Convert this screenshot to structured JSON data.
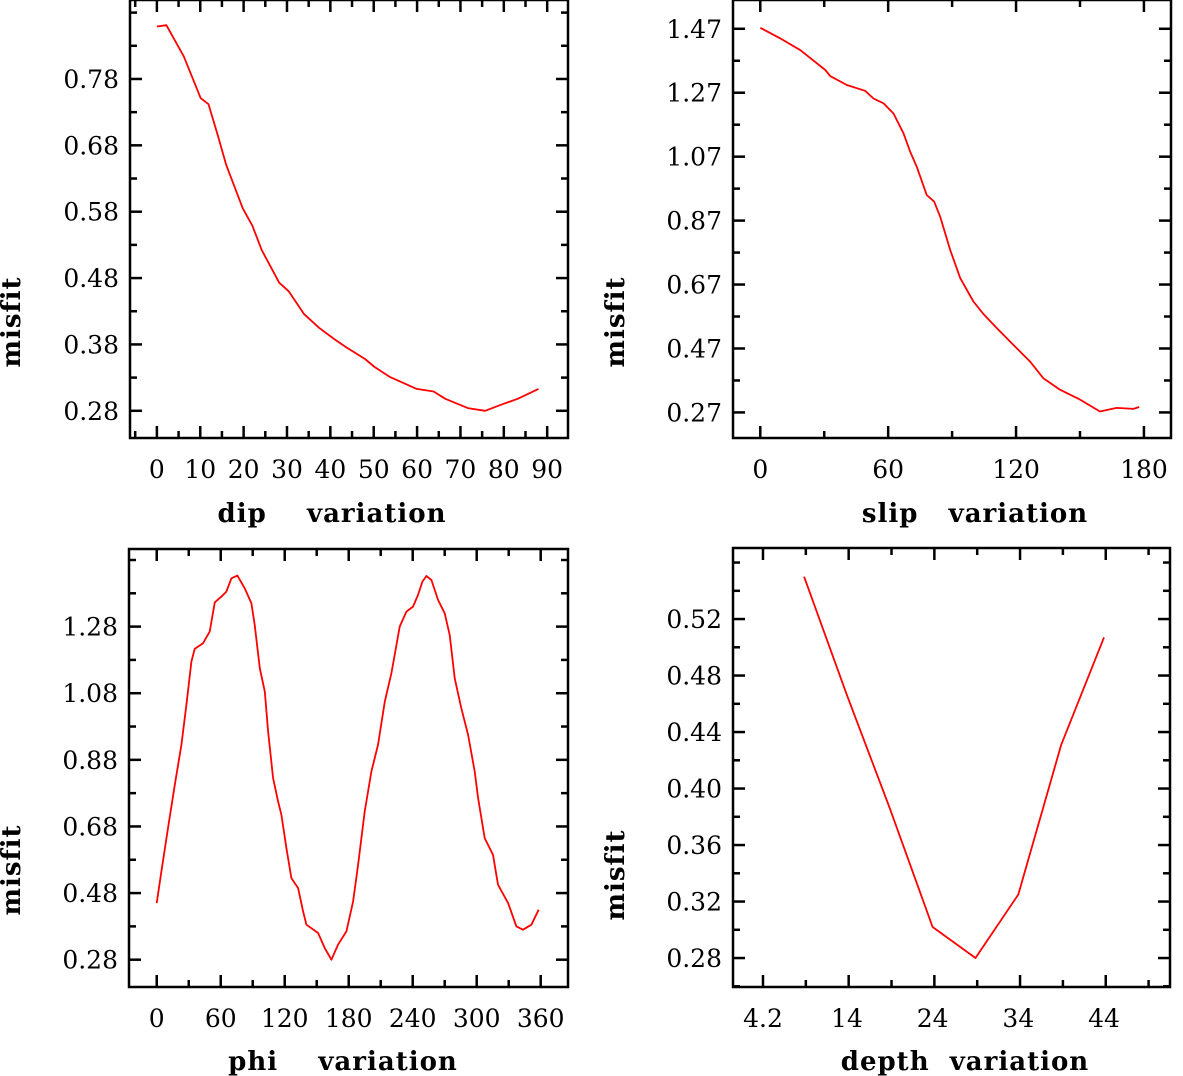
{
  "chart_data": [
    {
      "type": "line",
      "xlabel": "dip    variation",
      "ylabel": "misfit",
      "xlim": [
        -6.2,
        94.8
      ],
      "ylim": [
        0.239,
        0.899
      ],
      "xticks": [
        "0",
        "10",
        "20",
        "30",
        "40",
        "50",
        "60",
        "70",
        "80",
        "90"
      ],
      "xminor_step": 5,
      "yticks": [
        "0.28",
        "0.38",
        "0.48",
        "0.58",
        "0.68",
        "0.78"
      ],
      "yminor_step": 0.05,
      "color": "#ff0000",
      "points": [
        [
          0,
          0.859
        ],
        [
          2.2,
          0.861
        ],
        [
          6.2,
          0.814
        ],
        [
          10.1,
          0.751
        ],
        [
          11.9,
          0.742
        ],
        [
          14.1,
          0.694
        ],
        [
          16,
          0.65
        ],
        [
          19.8,
          0.585
        ],
        [
          22,
          0.559
        ],
        [
          24.2,
          0.522
        ],
        [
          28.2,
          0.473
        ],
        [
          30.4,
          0.46
        ],
        [
          33.9,
          0.426
        ],
        [
          37.4,
          0.405
        ],
        [
          40.9,
          0.388
        ],
        [
          43.6,
          0.376
        ],
        [
          48,
          0.358
        ],
        [
          50.2,
          0.346
        ],
        [
          53.7,
          0.331
        ],
        [
          59.9,
          0.313
        ],
        [
          63.8,
          0.309
        ],
        [
          66.5,
          0.298
        ],
        [
          71.7,
          0.284
        ],
        [
          75.7,
          0.28
        ],
        [
          79.7,
          0.29
        ],
        [
          83.2,
          0.298
        ],
        [
          88,
          0.313
        ]
      ]
    },
    {
      "type": "line",
      "xlabel": "slip   variation",
      "ylabel": "misfit",
      "xlim": [
        -12.8,
        192.7
      ],
      "ylim": [
        0.19,
        1.56
      ],
      "xticks": [
        "0",
        "60",
        "120",
        "180"
      ],
      "xminor_step": 30,
      "yticks": [
        "0.27",
        "0.47",
        "0.67",
        "0.87",
        "1.07",
        "1.27",
        "1.47"
      ],
      "yminor_step": 0.1,
      "color": "#ff0000",
      "points": [
        [
          0,
          1.473
        ],
        [
          9.4,
          1.44
        ],
        [
          18.8,
          1.403
        ],
        [
          30.5,
          1.341
        ],
        [
          32.8,
          1.322
        ],
        [
          40.6,
          1.294
        ],
        [
          49.2,
          1.276
        ],
        [
          53.1,
          1.252
        ],
        [
          57.8,
          1.237
        ],
        [
          62.5,
          1.205
        ],
        [
          67.2,
          1.143
        ],
        [
          70.3,
          1.086
        ],
        [
          73.4,
          1.039
        ],
        [
          78.1,
          0.95
        ],
        [
          81.6,
          0.929
        ],
        [
          84.4,
          0.882
        ],
        [
          89.1,
          0.778
        ],
        [
          93.8,
          0.69
        ],
        [
          100,
          0.617
        ],
        [
          104.7,
          0.578
        ],
        [
          110.9,
          0.534
        ],
        [
          118.8,
          0.481
        ],
        [
          126.6,
          0.429
        ],
        [
          132.8,
          0.377
        ],
        [
          140.6,
          0.341
        ],
        [
          150,
          0.31
        ],
        [
          159.4,
          0.273
        ],
        [
          167.2,
          0.284
        ],
        [
          175,
          0.281
        ],
        [
          177.8,
          0.287
        ]
      ]
    },
    {
      "type": "line",
      "xlabel": "phi    variation",
      "ylabel": "misfit",
      "xlim": [
        -26,
        385.6
      ],
      "ylim": [
        0.198,
        1.513
      ],
      "xticks": [
        "0",
        "60",
        "120",
        "180",
        "240",
        "300",
        "360"
      ],
      "xminor_step": 30,
      "yticks": [
        "0.28",
        "0.48",
        "0.68",
        "0.88",
        "1.08",
        "1.28"
      ],
      "yminor_step": 0.1,
      "color": "#ff0000",
      "points": [
        [
          0,
          0.45
        ],
        [
          4.4,
          0.545
        ],
        [
          10.6,
          0.675
        ],
        [
          16.9,
          0.805
        ],
        [
          23.1,
          0.925
        ],
        [
          27.8,
          1.045
        ],
        [
          32.5,
          1.175
        ],
        [
          35.6,
          1.213
        ],
        [
          43.4,
          1.23
        ],
        [
          49.7,
          1.265
        ],
        [
          54.4,
          1.353
        ],
        [
          60.6,
          1.37
        ],
        [
          65.3,
          1.385
        ],
        [
          70,
          1.425
        ],
        [
          75.6,
          1.433
        ],
        [
          82.5,
          1.395
        ],
        [
          88.8,
          1.35
        ],
        [
          91.9,
          1.285
        ],
        [
          96.6,
          1.155
        ],
        [
          101.3,
          1.085
        ],
        [
          104.4,
          0.965
        ],
        [
          109.1,
          0.825
        ],
        [
          113.8,
          0.755
        ],
        [
          116.9,
          0.715
        ],
        [
          121.6,
          0.615
        ],
        [
          126.3,
          0.525
        ],
        [
          132.5,
          0.495
        ],
        [
          137.2,
          0.425
        ],
        [
          140.3,
          0.385
        ],
        [
          151.3,
          0.36
        ],
        [
          157.5,
          0.315
        ],
        [
          163.8,
          0.28
        ],
        [
          170,
          0.325
        ],
        [
          177.8,
          0.365
        ],
        [
          184.1,
          0.455
        ],
        [
          188.8,
          0.565
        ],
        [
          195,
          0.725
        ],
        [
          201.3,
          0.845
        ],
        [
          207.5,
          0.925
        ],
        [
          213.8,
          1.055
        ],
        [
          220,
          1.14
        ],
        [
          223.1,
          1.195
        ],
        [
          227.8,
          1.28
        ],
        [
          234.1,
          1.325
        ],
        [
          240.3,
          1.34
        ],
        [
          245,
          1.375
        ],
        [
          249.1,
          1.415
        ],
        [
          252.8,
          1.432
        ],
        [
          257.5,
          1.42
        ],
        [
          263.8,
          1.36
        ],
        [
          270,
          1.32
        ],
        [
          274.7,
          1.255
        ],
        [
          279.4,
          1.125
        ],
        [
          285.6,
          1.035
        ],
        [
          291.9,
          0.955
        ],
        [
          298.1,
          0.845
        ],
        [
          301.3,
          0.765
        ],
        [
          307.5,
          0.645
        ],
        [
          315.3,
          0.595
        ],
        [
          320,
          0.505
        ],
        [
          329.4,
          0.45
        ],
        [
          337.2,
          0.38
        ],
        [
          343.4,
          0.37
        ],
        [
          351.3,
          0.385
        ],
        [
          358.1,
          0.43
        ]
      ]
    },
    {
      "type": "line",
      "xlabel": "depth  variation",
      "ylabel": "misfit",
      "xlim": [
        0.7,
        51.7
      ],
      "ylim": [
        0.2595,
        0.5703
      ],
      "xticks": [
        "4.2",
        "14",
        "24",
        "34",
        "44"
      ],
      "xminor_step": 5,
      "yticks": [
        "0.28",
        "0.32",
        "0.36",
        "0.40",
        "0.44",
        "0.48",
        "0.52"
      ],
      "yminor_step": 0.02,
      "color": "#ff0000",
      "points": [
        [
          9,
          0.55
        ],
        [
          14,
          0.466
        ],
        [
          19,
          0.386
        ],
        [
          24,
          0.302
        ],
        [
          29,
          0.28
        ],
        [
          34,
          0.325
        ],
        [
          39,
          0.431
        ],
        [
          44,
          0.507
        ]
      ]
    }
  ]
}
